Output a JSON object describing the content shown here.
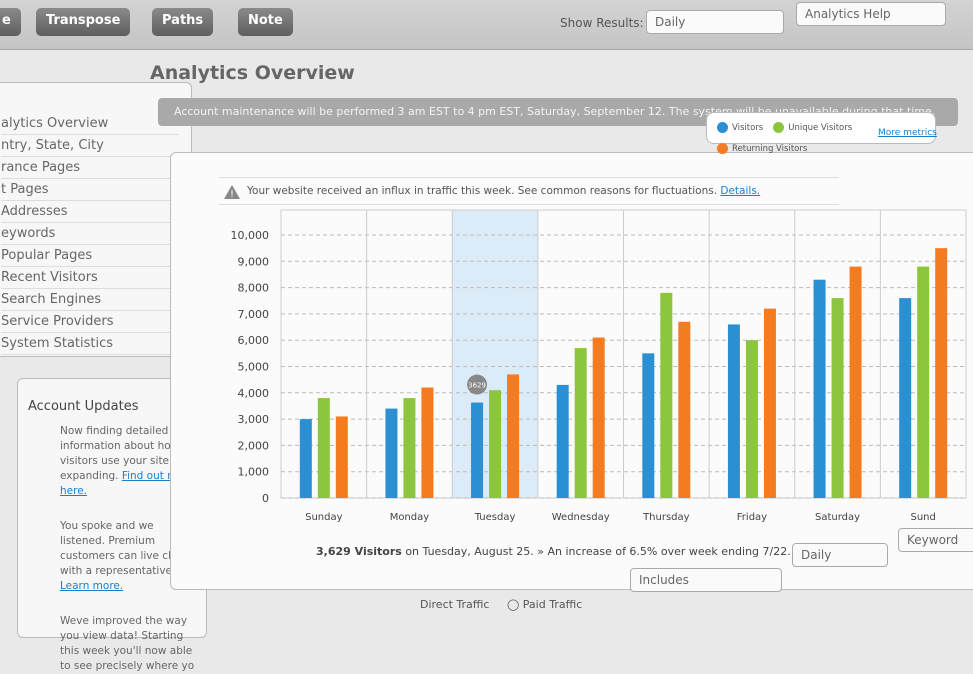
{
  "toolbar": {
    "buttons": [
      "e",
      "Transpose",
      "Paths",
      "Note"
    ],
    "show_results_label": "Show Results:",
    "show_results_value": "Daily",
    "help": "Analytics Help"
  },
  "sidebar": {
    "nav": [
      "alytics Overview",
      "ntry, State, City",
      "rance Pages",
      "t Pages",
      "Addresses",
      "eywords",
      "Popular Pages",
      "Recent Visitors",
      "Search Engines",
      "Service Providers",
      "System Statistics"
    ],
    "updates": {
      "title": "Account Updates",
      "items": [
        {
          "text": "Now finding detailed information about how visitors use your site is expanding.",
          "link": "Find out more here."
        },
        {
          "text": "You spoke and we listened. Premium customers can live chat with a representative.",
          "link": "Learn more."
        },
        {
          "text": "Weve improved the way you view data! Starting this week you'll now able to see precisely where yo",
          "link": ""
        }
      ]
    }
  },
  "main": {
    "title": "Analytics Overview",
    "banner": "Account maintenance will be performed 3 am EST to 4 pm EST, Saturday, September 12. The system will be unavailable during that time.",
    "more_metrics": "More metrics",
    "alert": "Your website received an influx in traffic this week. See common reasons for fluctuations.",
    "alert_link": "Details.",
    "summary_bold": "3,629 Visitors",
    "summary": "on Tuesday, August 25. » An increase of 6.5% over week ending 7/22.",
    "controls": {
      "includes": "Includes",
      "interval": "Daily",
      "keyword": "Keyword",
      "radio": [
        "Direct Traffic",
        "Paid Traffic"
      ]
    }
  },
  "chart": {
    "type": "bar",
    "grid": true,
    "highlight": "Tuesday",
    "categories": [
      "Sunday",
      "Monday",
      "Tuesday",
      "Wednesday",
      "Thursday",
      "Friday",
      "Saturday",
      "Sund"
    ],
    "series": [
      {
        "name": "Visitors",
        "color": "#2b8fd3",
        "values": [
          3000,
          3400,
          3629,
          4300,
          5500,
          6600,
          8300,
          7600
        ]
      },
      {
        "name": "Unique Visitors",
        "color": "#8cc63e",
        "values": [
          3800,
          3800,
          4100,
          5700,
          7800,
          6000,
          7600,
          8800
        ]
      },
      {
        "name": "Returning Visitors",
        "color": "#f47b20",
        "values": [
          3100,
          4200,
          4700,
          6100,
          6700,
          7200,
          8800,
          9500
        ]
      }
    ],
    "ylim": [
      0,
      10000
    ],
    "yticks": [
      0,
      {
        "value": 1000,
        "label": "1,000"
      },
      {
        "value": 2000,
        "label": "2,000"
      },
      {
        "value": 3000,
        "label": "3,000"
      },
      {
        "value": 4000,
        "label": "4,000"
      },
      {
        "value": 5000,
        "label": "5,000"
      },
      {
        "value": 6000,
        "label": "6,000"
      },
      {
        "value": 7000,
        "label": "7,000"
      },
      {
        "value": 8000,
        "label": "8,000"
      },
      {
        "value": 9000,
        "label": "9,000"
      },
      {
        "value": 10000,
        "label": "10,000"
      }
    ],
    "tooltip_series": 0
  }
}
